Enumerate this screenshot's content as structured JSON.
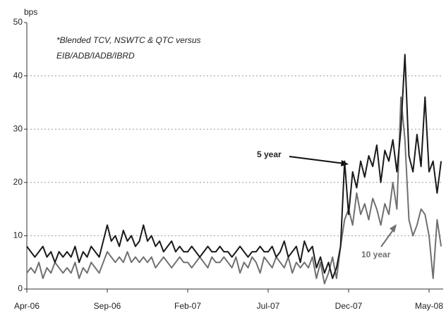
{
  "chart_data": {
    "type": "line",
    "y_axis_label": "bps",
    "annotations": [
      "*Blended TCV, NSWTC & QTC versus",
      "EIB/ADB/IADB/IBRD"
    ],
    "categories": [
      "Apr-06",
      null,
      null,
      null,
      null,
      null,
      null,
      null,
      null,
      null,
      null,
      null,
      null,
      null,
      null,
      null,
      null,
      null,
      null,
      null,
      "Sep-06",
      null,
      null,
      null,
      null,
      null,
      null,
      null,
      null,
      null,
      null,
      null,
      null,
      null,
      null,
      null,
      null,
      null,
      null,
      null,
      "Feb-07",
      null,
      null,
      null,
      null,
      null,
      null,
      null,
      null,
      null,
      null,
      null,
      null,
      null,
      null,
      null,
      null,
      null,
      null,
      null,
      "Jul-07",
      null,
      null,
      null,
      null,
      null,
      null,
      null,
      null,
      null,
      null,
      null,
      null,
      null,
      null,
      null,
      null,
      null,
      null,
      null,
      "Dec-07",
      null,
      null,
      null,
      null,
      null,
      null,
      null,
      null,
      null,
      null,
      null,
      null,
      null,
      null,
      null,
      null,
      null,
      null,
      null,
      "May-08",
      null,
      null,
      null
    ],
    "series": [
      {
        "name": "5 year",
        "color": "#1a1a1a",
        "values": [
          8,
          7,
          6,
          7,
          8,
          6,
          7,
          5,
          7,
          6,
          7,
          6,
          8,
          5,
          7,
          6,
          8,
          7,
          6,
          9,
          12,
          9,
          10,
          8,
          11,
          9,
          10,
          8,
          9,
          12,
          9,
          10,
          8,
          9,
          7,
          8,
          9,
          7,
          8,
          7,
          7,
          8,
          7,
          6,
          7,
          8,
          7,
          7,
          8,
          7,
          7,
          6,
          7,
          8,
          7,
          6,
          7,
          7,
          8,
          7,
          7,
          8,
          6,
          7,
          9,
          6,
          7,
          8,
          5,
          9,
          7,
          8,
          4,
          6,
          3,
          5,
          2,
          4,
          8,
          24,
          14,
          22,
          19,
          24,
          21,
          25,
          23,
          27,
          20,
          26,
          24,
          28,
          22,
          30,
          44,
          25,
          22,
          29,
          23,
          36,
          22,
          24,
          18,
          24
        ]
      },
      {
        "name": "10 year",
        "color": "#707070",
        "values": [
          3,
          4,
          3,
          5,
          2,
          4,
          3,
          5,
          4,
          3,
          4,
          3,
          5,
          2,
          4,
          3,
          5,
          4,
          3,
          5,
          7,
          6,
          5,
          6,
          5,
          7,
          5,
          6,
          5,
          6,
          5,
          6,
          4,
          5,
          6,
          5,
          4,
          5,
          6,
          5,
          5,
          4,
          5,
          6,
          5,
          4,
          6,
          5,
          5,
          6,
          5,
          4,
          6,
          3,
          5,
          4,
          6,
          5,
          3,
          6,
          5,
          4,
          6,
          5,
          4,
          6,
          3,
          5,
          4,
          5,
          4,
          6,
          2,
          5,
          1,
          3,
          6,
          2,
          8,
          13,
          15,
          12,
          18,
          14,
          16,
          13,
          17,
          15,
          12,
          16,
          14,
          20,
          15,
          36,
          28,
          13,
          10,
          12,
          15,
          14,
          10,
          2,
          13,
          8
        ]
      }
    ],
    "ylim": [
      0,
      50
    ],
    "yticks": [
      0,
      10,
      20,
      30,
      40,
      50
    ],
    "grid": true
  }
}
